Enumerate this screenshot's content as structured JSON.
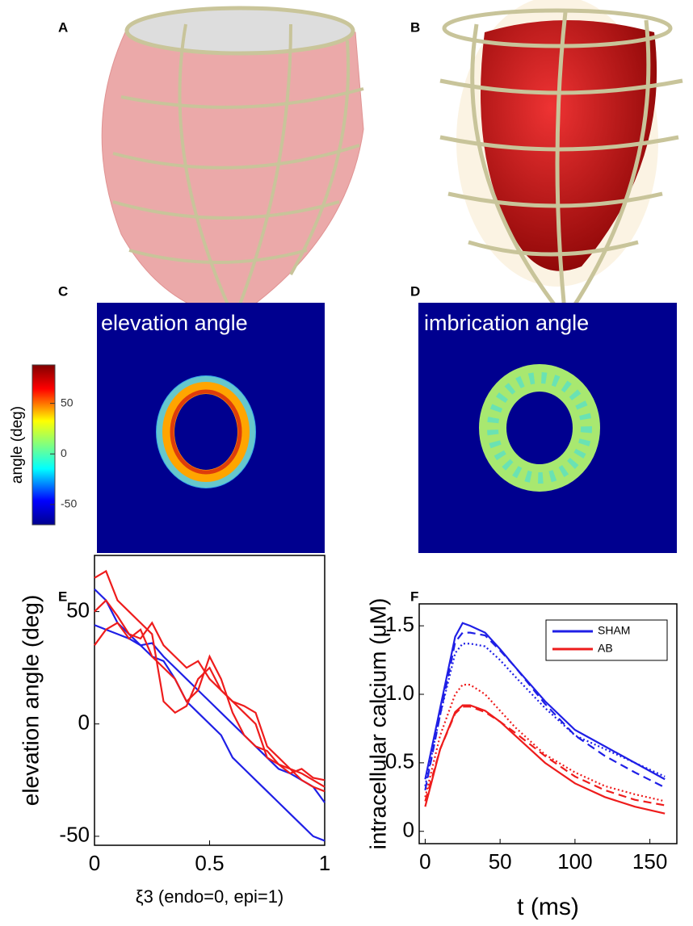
{
  "panels": [
    "A",
    "B",
    "C",
    "D",
    "E",
    "F"
  ],
  "images": [
    {
      "title": "elevation angle"
    },
    {
      "title": "imbrication angle"
    }
  ],
  "colorbar": {
    "label": "angle  (deg)",
    "lim": [
      -70,
      88
    ],
    "ticks": [
      50,
      0,
      -50
    ]
  },
  "chart_data": [
    {
      "type": "line",
      "xlabel": "ξ3 (endo=0, epi=1)",
      "ylabel": "elevation angle  (deg)",
      "x": [
        0,
        0.05,
        0.1,
        0.15,
        0.2,
        0.25,
        0.3,
        0.35,
        0.4,
        0.45,
        0.5,
        0.55,
        0.6,
        0.65,
        0.7,
        0.75,
        0.8,
        0.85,
        0.9,
        0.95,
        1
      ],
      "xlim": [
        0,
        1
      ],
      "xticks": [
        0,
        0.5,
        1
      ],
      "ylim": [
        -54,
        75
      ],
      "yticks": [
        -50,
        0,
        50
      ],
      "series": [
        {
          "color": "#1f1fe6",
          "style": "solid",
          "values": [
            60,
            55,
            45,
            40,
            35,
            30,
            28,
            20,
            10,
            5,
            0,
            -5,
            -15,
            -20,
            -25,
            -30,
            -35,
            -40,
            -45,
            -50,
            -52
          ]
        },
        {
          "color": "#1f1fe6",
          "style": "solid",
          "values": [
            44,
            42,
            40,
            38,
            35,
            36,
            30,
            25,
            20,
            15,
            10,
            5,
            0,
            -5,
            -10,
            -15,
            -20,
            -22,
            -25,
            -28,
            -35
          ]
        },
        {
          "color": "#ee1c1c",
          "style": "solid",
          "values": [
            65,
            68,
            55,
            50,
            45,
            40,
            10,
            5,
            8,
            20,
            25,
            15,
            10,
            5,
            0,
            -15,
            -18,
            -20,
            -22,
            -25,
            -28
          ]
        },
        {
          "color": "#ee1c1c",
          "style": "solid",
          "values": [
            50,
            55,
            48,
            40,
            38,
            45,
            35,
            30,
            25,
            28,
            20,
            15,
            10,
            8,
            5,
            -10,
            -15,
            -20,
            -25,
            -28,
            -30
          ]
        },
        {
          "color": "#ee1c1c",
          "style": "solid",
          "values": [
            35,
            42,
            45,
            38,
            42,
            30,
            25,
            20,
            10,
            15,
            30,
            20,
            5,
            -5,
            -10,
            -12,
            -18,
            -22,
            -20,
            -24,
            -25
          ]
        }
      ]
    },
    {
      "type": "line",
      "xlabel": "t (ms)",
      "ylabel": "intracellular calcium (μM)",
      "x": [
        0,
        10,
        20,
        25,
        30,
        40,
        50,
        60,
        80,
        100,
        120,
        140,
        160
      ],
      "xlim": [
        -4,
        168
      ],
      "xticks": [
        0,
        50,
        100,
        150
      ],
      "ylim": [
        -0.09,
        1.66
      ],
      "yticks": [
        0,
        0.5,
        {
          "value": 1,
          "label": "1.0"
        },
        1.5
      ],
      "legend": "upper right",
      "series": [
        {
          "name": "SHAM",
          "color": "#1f1fe6",
          "style": "solid",
          "values": [
            0.38,
            0.9,
            1.42,
            1.52,
            1.5,
            1.45,
            1.33,
            1.2,
            0.95,
            0.74,
            0.62,
            0.5,
            0.38
          ]
        },
        {
          "color": "#1f1fe6",
          "style": "dashed",
          "values": [
            0.3,
            0.85,
            1.38,
            1.45,
            1.45,
            1.43,
            1.32,
            1.2,
            0.93,
            0.7,
            0.55,
            0.43,
            0.32
          ]
        },
        {
          "color": "#1f1fe6",
          "style": "dotted",
          "values": [
            0.33,
            0.85,
            1.3,
            1.37,
            1.37,
            1.35,
            1.25,
            1.13,
            0.9,
            0.7,
            0.6,
            0.5,
            0.4
          ]
        },
        {
          "name": "AB",
          "color": "#ee1c1c",
          "style": "solid",
          "values": [
            0.18,
            0.6,
            0.87,
            0.92,
            0.92,
            0.88,
            0.8,
            0.7,
            0.5,
            0.35,
            0.25,
            0.18,
            0.13
          ]
        },
        {
          "color": "#ee1c1c",
          "style": "dashed",
          "values": [
            0.22,
            0.6,
            0.86,
            0.91,
            0.91,
            0.87,
            0.8,
            0.72,
            0.55,
            0.4,
            0.3,
            0.23,
            0.19
          ]
        },
        {
          "color": "#ee1c1c",
          "style": "dotted",
          "values": [
            0.25,
            0.7,
            1.0,
            1.07,
            1.07,
            1.0,
            0.88,
            0.76,
            0.56,
            0.43,
            0.33,
            0.27,
            0.22
          ]
        }
      ]
    }
  ]
}
